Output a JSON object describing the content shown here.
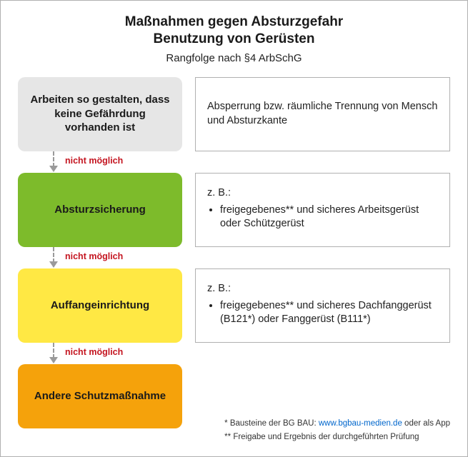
{
  "type": "flowchart",
  "title_line1": "Maßnahmen gegen Absturzgefahr",
  "title_line2": "Benutzung von Gerüsten",
  "subtitle": "Rangfolge nach §4 ArbSchG",
  "connector_label": "nicht möglich",
  "colors": {
    "border": "#b0b0b0",
    "text": "#1a1a1a",
    "connector_label": "#c41520",
    "arrow": "#9a9a9a",
    "link": "#0066cc",
    "boxes": [
      "#e6e6e6",
      "#7dbb2b",
      "#ffe844",
      "#f5a20b"
    ]
  },
  "steps": [
    {
      "label": "Arbeiten so gestalten, dass keine Gefährdung vorhanden ist",
      "description_plain": "Absperrung bzw. räumliche Trennung von Mensch und Absturzkante"
    },
    {
      "label": "Absturzsicherung",
      "description_intro": "z. B.:",
      "description_bullets": [
        "freigegebenes** und sicheres Arbeitsgerüst oder Schützgerüst"
      ]
    },
    {
      "label": "Auffangeinrichtung",
      "description_intro": "z. B.:",
      "description_bullets": [
        "freigegebenes** und sicheres Dachfanggerüst (B121*) oder Fanggerüst (B111*)"
      ]
    },
    {
      "label": "Andere Schutzmaßnahme"
    }
  ],
  "footnotes": {
    "line1_prefix": "* Bausteine der BG BAU: ",
    "line1_link": "www.bgbau-medien.de",
    "line1_suffix": " oder als App",
    "line2": "** Freigabe und Ergebnis der durchgeführten Prüfung"
  }
}
